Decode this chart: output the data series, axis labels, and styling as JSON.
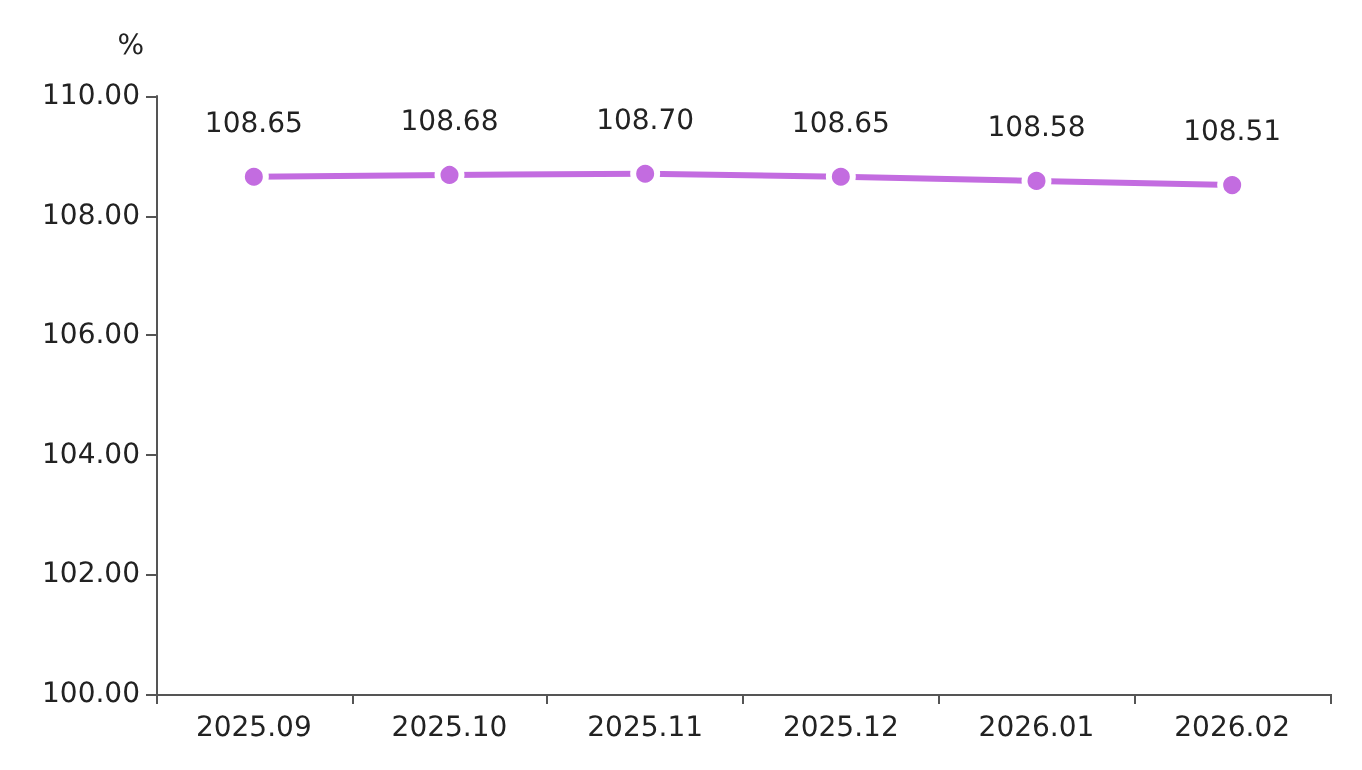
{
  "chart_data": {
    "type": "line",
    "ylabel": "%",
    "categories": [
      "2025.09",
      "2025.10",
      "2025.11",
      "2025.12",
      "2026.01",
      "2026.02"
    ],
    "series": [
      {
        "color": "#c36ce0",
        "values": [
          108.65,
          108.68,
          108.7,
          108.65,
          108.58,
          108.51
        ],
        "value_labels": [
          "108.65",
          "108.68",
          "108.70",
          "108.65",
          "108.58",
          "108.51"
        ]
      }
    ],
    "ylim": [
      100,
      110
    ],
    "yticks": [
      {
        "value": 100,
        "label": "100.00"
      },
      {
        "value": 102,
        "label": "102.00"
      },
      {
        "value": 104,
        "label": "104.00"
      },
      {
        "value": 106,
        "label": "106.00"
      },
      {
        "value": 108,
        "label": "108.00"
      },
      {
        "value": 110,
        "label": "110.00"
      }
    ],
    "grid": false,
    "marker": "circle",
    "line_style": "solid"
  }
}
